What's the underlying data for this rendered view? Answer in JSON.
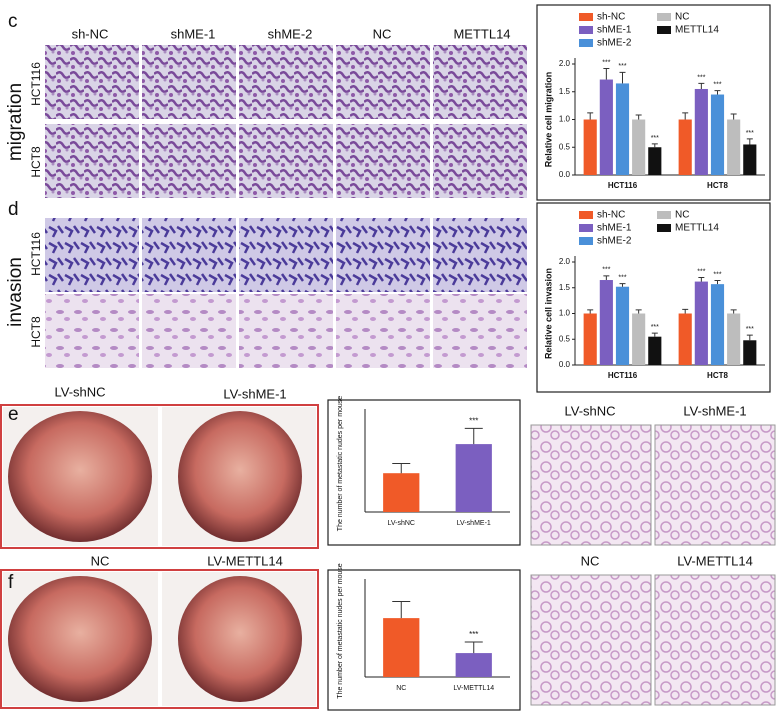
{
  "figure": {
    "panel_c": {
      "letter": "c",
      "section": "migration",
      "columns": [
        "sh-NC",
        "shME-1",
        "shME-2",
        "NC",
        "METTL14"
      ],
      "rows": [
        "HCT116",
        "HCT8"
      ]
    },
    "panel_d": {
      "letter": "d",
      "section": "invasion",
      "rows": [
        "HCT116",
        "HCT8"
      ]
    },
    "panel_e": {
      "letter": "e",
      "photos": [
        "LV-shNC",
        "LV-shME-1"
      ],
      "histology": [
        "LV-shNC",
        "LV-shME-1"
      ]
    },
    "panel_f": {
      "letter": "f",
      "photos": [
        "NC",
        "LV-METTL14"
      ],
      "histology": [
        "NC",
        "LV-METTL14"
      ]
    }
  },
  "chart_data": [
    {
      "type": "bar",
      "y_label": "Relative cell migration",
      "categories": [
        "HCT116",
        "HCT8"
      ],
      "series": [
        {
          "name": "sh-NC",
          "color": "#f05a28",
          "values": [
            1.0,
            1.0
          ],
          "errors": [
            0.12,
            0.12
          ],
          "significance": [
            null,
            null
          ]
        },
        {
          "name": "shME-1",
          "color": "#7b5fc0",
          "values": [
            1.72,
            1.55
          ],
          "errors": [
            0.2,
            0.1
          ],
          "significance": [
            "***",
            "***"
          ]
        },
        {
          "name": "shME-2",
          "color": "#4a90d9",
          "values": [
            1.65,
            1.45
          ],
          "errors": [
            0.2,
            0.07
          ],
          "significance": [
            "***",
            "***"
          ]
        },
        {
          "name": "NC",
          "color": "#bdbdbd",
          "values": [
            1.0,
            1.0
          ],
          "errors": [
            0.08,
            0.1
          ],
          "significance": [
            null,
            null
          ]
        },
        {
          "name": "METTL14",
          "color": "#111111",
          "values": [
            0.5,
            0.55
          ],
          "errors": [
            0.06,
            0.1
          ],
          "significance": [
            "***",
            "***"
          ]
        }
      ],
      "ylim": [
        0,
        2.0
      ],
      "yticks": [
        {
          "value": 0,
          "label": "0.0"
        },
        {
          "value": 0.5,
          "label": "0.5"
        },
        {
          "value": 1,
          "label": "1.0"
        },
        {
          "value": 1.5,
          "label": "1.5"
        },
        {
          "value": 2,
          "label": "2.0"
        }
      ]
    },
    {
      "type": "bar",
      "y_label": "Relative cell invasion",
      "categories": [
        "HCT116",
        "HCT8"
      ],
      "series": [
        {
          "name": "sh-NC",
          "color": "#f05a28",
          "values": [
            1.0,
            1.0
          ],
          "errors": [
            0.07,
            0.08
          ],
          "significance": [
            null,
            null
          ]
        },
        {
          "name": "shME-1",
          "color": "#7b5fc0",
          "values": [
            1.65,
            1.62
          ],
          "errors": [
            0.08,
            0.08
          ],
          "significance": [
            "***",
            "***"
          ]
        },
        {
          "name": "shME-2",
          "color": "#4a90d9",
          "values": [
            1.52,
            1.57
          ],
          "errors": [
            0.06,
            0.07
          ],
          "significance": [
            "***",
            "***"
          ]
        },
        {
          "name": "NC",
          "color": "#bdbdbd",
          "values": [
            1.0,
            1.0
          ],
          "errors": [
            0.07,
            0.07
          ],
          "significance": [
            null,
            null
          ]
        },
        {
          "name": "METTL14",
          "color": "#111111",
          "values": [
            0.55,
            0.48
          ],
          "errors": [
            0.07,
            0.1
          ],
          "significance": [
            "***",
            "***"
          ]
        }
      ],
      "ylim": [
        0,
        2.0
      ],
      "yticks": [
        {
          "value": 0,
          "label": "0.0"
        },
        {
          "value": 0.5,
          "label": "0.5"
        },
        {
          "value": 1,
          "label": "1.0"
        },
        {
          "value": 1.5,
          "label": "1.5"
        },
        {
          "value": 2,
          "label": "2.0"
        }
      ]
    },
    {
      "type": "bar",
      "y_label": "The number of metastatic nudes per mouse",
      "categories": [
        "LV-shNC",
        "LV-shME-1"
      ],
      "values": [
        16,
        28
      ],
      "errors": [
        4,
        6.5
      ],
      "colors": [
        "#f05a28",
        "#7b5fc0"
      ],
      "significance": [
        null,
        "***"
      ],
      "ylim": [
        0,
        40
      ]
    },
    {
      "type": "bar",
      "y_label": "The number of metastatic nudes per mouse",
      "categories": [
        "NC",
        "LV-METTL14"
      ],
      "values": [
        16,
        6.5
      ],
      "errors": [
        4.5,
        3
      ],
      "colors": [
        "#f05a28",
        "#7b5fc0"
      ],
      "significance": [
        null,
        "***"
      ],
      "ylim": [
        0,
        25
      ]
    }
  ]
}
